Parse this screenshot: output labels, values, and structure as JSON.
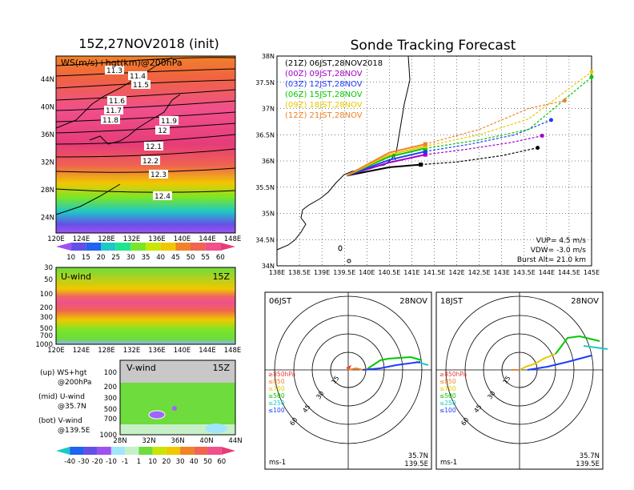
{
  "left_title": "15Z,27NOV2018 (init)",
  "right_title": "Sonde Tracking Forecast",
  "top_panel": {
    "label": "WS(m/s)+hgt(km)@200hPa",
    "lon_ticks": [
      "120E",
      "124E",
      "128E",
      "132E",
      "136E",
      "140E",
      "144E",
      "148E"
    ],
    "lat_ticks": [
      "44N",
      "40N",
      "36N",
      "32N",
      "28N",
      "24N"
    ],
    "contour_labels": [
      "11.3",
      "11.4",
      "11.5",
      "11.6",
      "11.7",
      "11.8",
      "11.9",
      "12",
      "12.1",
      "12.2",
      "12.3",
      "12.4"
    ],
    "colorbar": [
      "10",
      "15",
      "20",
      "25",
      "30",
      "35",
      "40",
      "45",
      "50",
      "55",
      "60"
    ]
  },
  "mid_panel": {
    "label": "U-wind",
    "time": "15Z",
    "p_ticks": [
      "30",
      "50",
      "100",
      "200",
      "300",
      "500",
      "700",
      "1000"
    ],
    "lon_ticks": [
      "120E",
      "124E",
      "128E",
      "132E",
      "136E",
      "140E",
      "144E",
      "148E"
    ]
  },
  "bot_panel": {
    "label": "V-wind",
    "time": "15Z",
    "p_ticks": [
      "100",
      "200",
      "300",
      "500",
      "700",
      "1000"
    ],
    "lat_ticks": [
      "28N",
      "32N",
      "36N",
      "40N",
      "44N"
    ],
    "colorbar": [
      "-40",
      "-30",
      "-20",
      "-10",
      "-1",
      "1",
      "10",
      "20",
      "30",
      "40",
      "50",
      "60"
    ]
  },
  "legend_notes": [
    [
      "(up) WS+hgt",
      "@200hPa"
    ],
    [
      "(mid) U-wind",
      "@35.7N"
    ],
    [
      "(bot) V-wind",
      "@139.5E"
    ]
  ],
  "tracking": {
    "lat_ticks": [
      "38N",
      "37.5N",
      "37N",
      "36.5N",
      "36N",
      "35.5N",
      "35N",
      "34.5N",
      "34N"
    ],
    "lon_ticks": [
      "138E",
      "138.5E",
      "139E",
      "139.5E",
      "140E",
      "140.5E",
      "141E",
      "141.5E",
      "142E",
      "142.5E",
      "143E",
      "143.5E",
      "144E",
      "144.5E",
      "145E"
    ],
    "legend": [
      {
        "label": "(21Z) 06JST,28NOV2018",
        "color": "#000000"
      },
      {
        "label": "(00Z) 09JST,28NOV",
        "color": "#a000c8"
      },
      {
        "label": "(03Z) 12JST,28NOV",
        "color": "#1e3cff"
      },
      {
        "label": "(06Z) 15JST,28NOV",
        "color": "#00c800"
      },
      {
        "label": "(09Z) 18JST,28NOV",
        "color": "#e6c800"
      },
      {
        "label": "(12Z) 21JST,28NOV",
        "color": "#f08228"
      }
    ],
    "params": [
      "VUP= 4.5 m/s",
      "VDW= -3.0 m/s",
      "Burst Alt= 21.0 km"
    ]
  },
  "hodographs": [
    {
      "time": "06JST",
      "date": "28NOV",
      "loc1": "35.7N",
      "loc2": "139.5E",
      "unit": "ms-1"
    },
    {
      "time": "18JST",
      "date": "28NOV",
      "loc1": "35.7N",
      "loc2": "139.5E",
      "unit": "ms-1"
    }
  ],
  "hodo_rings": [
    "15",
    "30",
    "45",
    "60"
  ],
  "hodo_legend": [
    {
      "label": "≥850hPa",
      "color": "#e63c3c"
    },
    {
      "label": "≤850",
      "color": "#f08228"
    },
    {
      "label": "≤700",
      "color": "#e6c800"
    },
    {
      "label": "≤500",
      "color": "#00c800"
    },
    {
      "label": "≤250",
      "color": "#1ec8c8"
    },
    {
      "label": "≤100",
      "color": "#1e3cff"
    }
  ],
  "chart_data": [
    {
      "type": "line",
      "title": "Sonde Tracking Forecast",
      "xlim": [
        138,
        145
      ],
      "ylim": [
        34,
        38
      ],
      "series": [
        {
          "name": "(21Z) 06JST,28NOV2018",
          "x": [
            139.55,
            140.5,
            141.2,
            142.0,
            143.0,
            143.8
          ],
          "y": [
            35.72,
            35.88,
            35.93,
            35.98,
            36.1,
            36.25
          ]
        },
        {
          "name": "(00Z) 09JST,28NOV",
          "x": [
            139.55,
            140.5,
            141.3,
            142.2,
            143.2,
            143.9
          ],
          "y": [
            35.72,
            35.97,
            36.12,
            36.22,
            36.35,
            36.48
          ]
        },
        {
          "name": "(03Z) 12JST,28NOV",
          "x": [
            139.55,
            140.5,
            141.3,
            142.3,
            143.3,
            144.1
          ],
          "y": [
            35.72,
            36.02,
            36.18,
            36.32,
            36.5,
            36.78
          ]
        },
        {
          "name": "(06Z) 15JST,28NOV",
          "x": [
            139.55,
            140.5,
            141.3,
            142.5,
            143.6,
            145.0
          ],
          "y": [
            35.72,
            36.08,
            36.24,
            36.4,
            36.6,
            37.6
          ]
        },
        {
          "name": "(09Z) 18JST,28NOV",
          "x": [
            139.55,
            140.5,
            141.3,
            142.5,
            143.6,
            145.0
          ],
          "y": [
            35.72,
            36.12,
            36.28,
            36.5,
            36.8,
            37.7
          ]
        },
        {
          "name": "(12Z) 21JST,28NOV",
          "x": [
            139.55,
            140.5,
            141.3,
            142.5,
            143.6,
            144.4
          ],
          "y": [
            35.72,
            36.16,
            36.32,
            36.6,
            37.0,
            37.15
          ]
        }
      ]
    }
  ]
}
